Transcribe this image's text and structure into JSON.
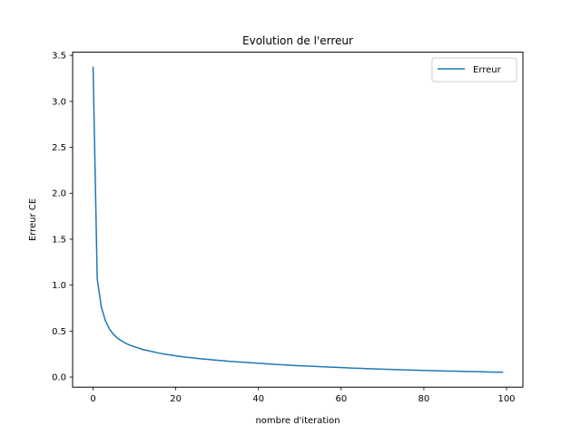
{
  "chart_data": {
    "type": "line",
    "title": "Evolution de l'erreur",
    "xlabel": "nombre d'iteration",
    "ylabel": "Erreur CE",
    "xlim": [
      -4.95,
      103.95
    ],
    "ylim": [
      -0.11,
      3.535
    ],
    "x_ticks": [
      0,
      20,
      40,
      60,
      80,
      100
    ],
    "y_ticks": [
      0.0,
      0.5,
      1.0,
      1.5,
      2.0,
      2.5,
      3.0,
      3.5
    ],
    "x_tick_labels": [
      "0",
      "20",
      "40",
      "60",
      "80",
      "100"
    ],
    "y_tick_labels": [
      "0.0",
      "0.5",
      "1.0",
      "1.5",
      "2.0",
      "2.5",
      "3.0",
      "3.5"
    ],
    "legend_position": "upper right",
    "grid": false,
    "series": [
      {
        "name": "Erreur",
        "color": "#1f77b4",
        "x": [
          0,
          1,
          2,
          3,
          4,
          5,
          6,
          7,
          8,
          9,
          10,
          11,
          12,
          13,
          14,
          15,
          16,
          17,
          18,
          19,
          20,
          21,
          22,
          23,
          24,
          25,
          26,
          27,
          28,
          29,
          30,
          31,
          32,
          33,
          34,
          35,
          36,
          37,
          38,
          39,
          40,
          41,
          42,
          43,
          44,
          45,
          46,
          47,
          48,
          49,
          50,
          51,
          52,
          53,
          54,
          55,
          56,
          57,
          58,
          59,
          60,
          61,
          62,
          63,
          64,
          65,
          66,
          67,
          68,
          69,
          70,
          71,
          72,
          73,
          74,
          75,
          76,
          77,
          78,
          79,
          80,
          81,
          82,
          83,
          84,
          85,
          86,
          87,
          88,
          89,
          90,
          91,
          92,
          93,
          94,
          95,
          96,
          97,
          98,
          99
        ],
        "values": [
          3.37,
          1.07,
          0.76,
          0.61,
          0.52,
          0.46,
          0.42,
          0.39,
          0.365,
          0.345,
          0.33,
          0.315,
          0.3,
          0.29,
          0.28,
          0.27,
          0.26,
          0.252,
          0.245,
          0.238,
          0.231,
          0.225,
          0.219,
          0.214,
          0.209,
          0.204,
          0.199,
          0.195,
          0.191,
          0.187,
          0.183,
          0.179,
          0.175,
          0.171,
          0.168,
          0.165,
          0.162,
          0.159,
          0.156,
          0.153,
          0.15,
          0.147,
          0.144,
          0.141,
          0.138,
          0.135,
          0.133,
          0.13,
          0.128,
          0.125,
          0.123,
          0.121,
          0.119,
          0.117,
          0.115,
          0.113,
          0.111,
          0.109,
          0.107,
          0.105,
          0.103,
          0.101,
          0.099,
          0.097,
          0.095,
          0.094,
          0.092,
          0.09,
          0.089,
          0.087,
          0.086,
          0.084,
          0.083,
          0.081,
          0.08,
          0.078,
          0.077,
          0.076,
          0.074,
          0.073,
          0.072,
          0.071,
          0.069,
          0.068,
          0.067,
          0.066,
          0.065,
          0.064,
          0.063,
          0.062,
          0.061,
          0.06,
          0.059,
          0.058,
          0.057,
          0.056,
          0.055,
          0.054,
          0.053,
          0.052
        ]
      }
    ]
  }
}
